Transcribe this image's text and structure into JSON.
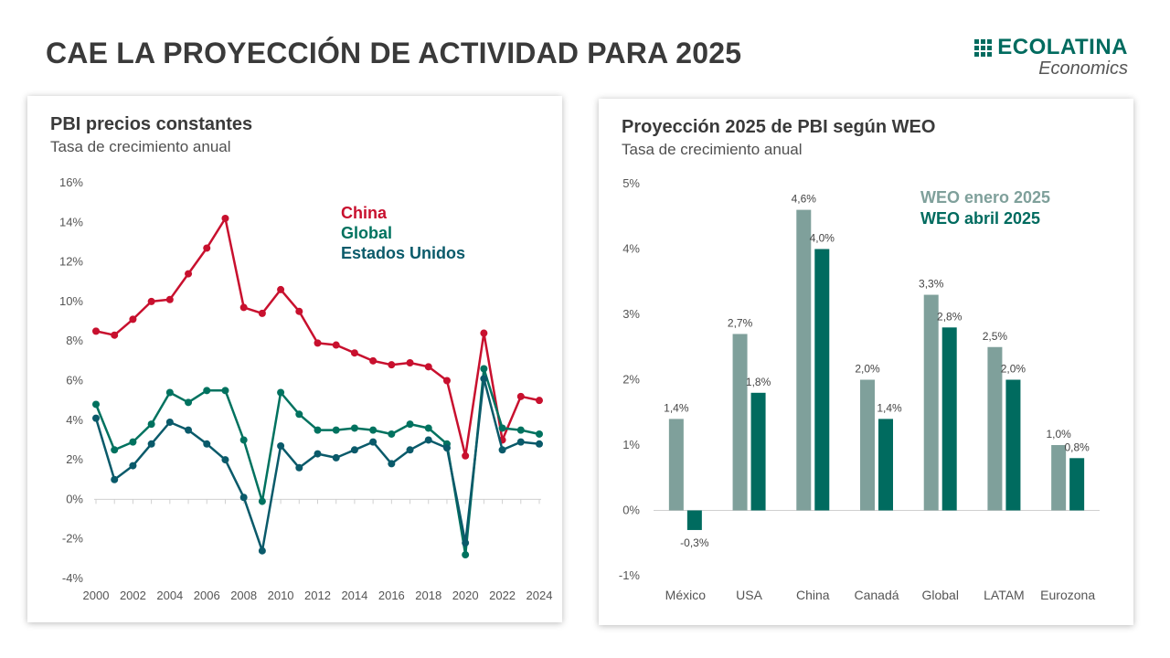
{
  "page": {
    "title": "CAE LA PROYECCIÓN DE ACTIVIDAD PARA 2025"
  },
  "logo": {
    "name": "ECOLATINA",
    "sub": "Economics"
  },
  "left_chart": {
    "title": "PBI precios constantes",
    "subtitle": "Tasa de crecimiento anual"
  },
  "right_chart": {
    "title": "Proyección 2025 de PBI según WEO",
    "subtitle": "Tasa de crecimiento anual"
  },
  "chart_data": [
    {
      "type": "line",
      "title": "PBI precios constantes",
      "subtitle": "Tasa de crecimiento anual",
      "xlabel": "",
      "ylabel": "",
      "x": [
        2000,
        2001,
        2002,
        2003,
        2004,
        2005,
        2006,
        2007,
        2008,
        2009,
        2010,
        2011,
        2012,
        2013,
        2014,
        2015,
        2016,
        2017,
        2018,
        2019,
        2020,
        2021,
        2022,
        2023,
        2024
      ],
      "x_tick_labels": [
        "2000",
        "2002",
        "2004",
        "2006",
        "2008",
        "2010",
        "2012",
        "2014",
        "2016",
        "2018",
        "2020",
        "2022",
        "2024"
      ],
      "ylim": [
        -4,
        16
      ],
      "y_tick_labels": [
        "-4%",
        "-2%",
        "0%",
        "2%",
        "4%",
        "6%",
        "8%",
        "10%",
        "12%",
        "14%",
        "16%"
      ],
      "grid": false,
      "legend": "top-right",
      "series": [
        {
          "name": "China",
          "color": "#c8102e",
          "values": [
            8.5,
            8.3,
            9.1,
            10.0,
            10.1,
            11.4,
            12.7,
            14.2,
            9.7,
            9.4,
            10.6,
            9.5,
            7.9,
            7.8,
            7.4,
            7.0,
            6.8,
            6.9,
            6.7,
            6.0,
            2.2,
            8.4,
            3.0,
            5.2,
            5.0
          ]
        },
        {
          "name": "Global",
          "color": "#00725f",
          "values": [
            4.8,
            2.5,
            2.9,
            3.8,
            5.4,
            4.9,
            5.5,
            5.5,
            3.0,
            -0.1,
            5.4,
            4.3,
            3.5,
            3.5,
            3.6,
            3.5,
            3.3,
            3.8,
            3.6,
            2.8,
            -2.8,
            6.6,
            3.6,
            3.5,
            3.3
          ]
        },
        {
          "name": "Estados Unidos",
          "color": "#0a5a6a",
          "values": [
            4.1,
            1.0,
            1.7,
            2.8,
            3.9,
            3.5,
            2.8,
            2.0,
            0.1,
            -2.6,
            2.7,
            1.6,
            2.3,
            2.1,
            2.5,
            2.9,
            1.8,
            2.5,
            3.0,
            2.6,
            -2.2,
            6.1,
            2.5,
            2.9,
            2.8
          ]
        }
      ]
    },
    {
      "type": "bar",
      "title": "Proyección 2025 de PBI según WEO",
      "subtitle": "Tasa de crecimiento anual",
      "xlabel": "",
      "ylabel": "",
      "categories": [
        "México",
        "USA",
        "China",
        "Canadá",
        "Global",
        "LATAM",
        "Eurozona"
      ],
      "ylim": [
        -1,
        5
      ],
      "y_tick_labels": [
        "-1%",
        "0%",
        "1%",
        "2%",
        "3%",
        "4%",
        "5%"
      ],
      "grid": false,
      "legend": "top-right",
      "series": [
        {
          "name": "WEO enero 2025",
          "color": "#7fa09b",
          "values": [
            1.4,
            2.7,
            4.6,
            2.0,
            3.3,
            2.5,
            1.0
          ],
          "labels": [
            "1,4%",
            "2,7%",
            "4,6%",
            "2,0%",
            "3,3%",
            "2,5%",
            "1,0%"
          ]
        },
        {
          "name": "WEO abril 2025",
          "color": "#006b5f",
          "values": [
            -0.3,
            1.8,
            4.0,
            1.4,
            2.8,
            2.0,
            0.8
          ],
          "labels": [
            "-0,3%",
            "1,8%",
            "4,0%",
            "1,4%",
            "2,8%",
            "2,0%",
            "0,8%"
          ]
        }
      ]
    }
  ]
}
